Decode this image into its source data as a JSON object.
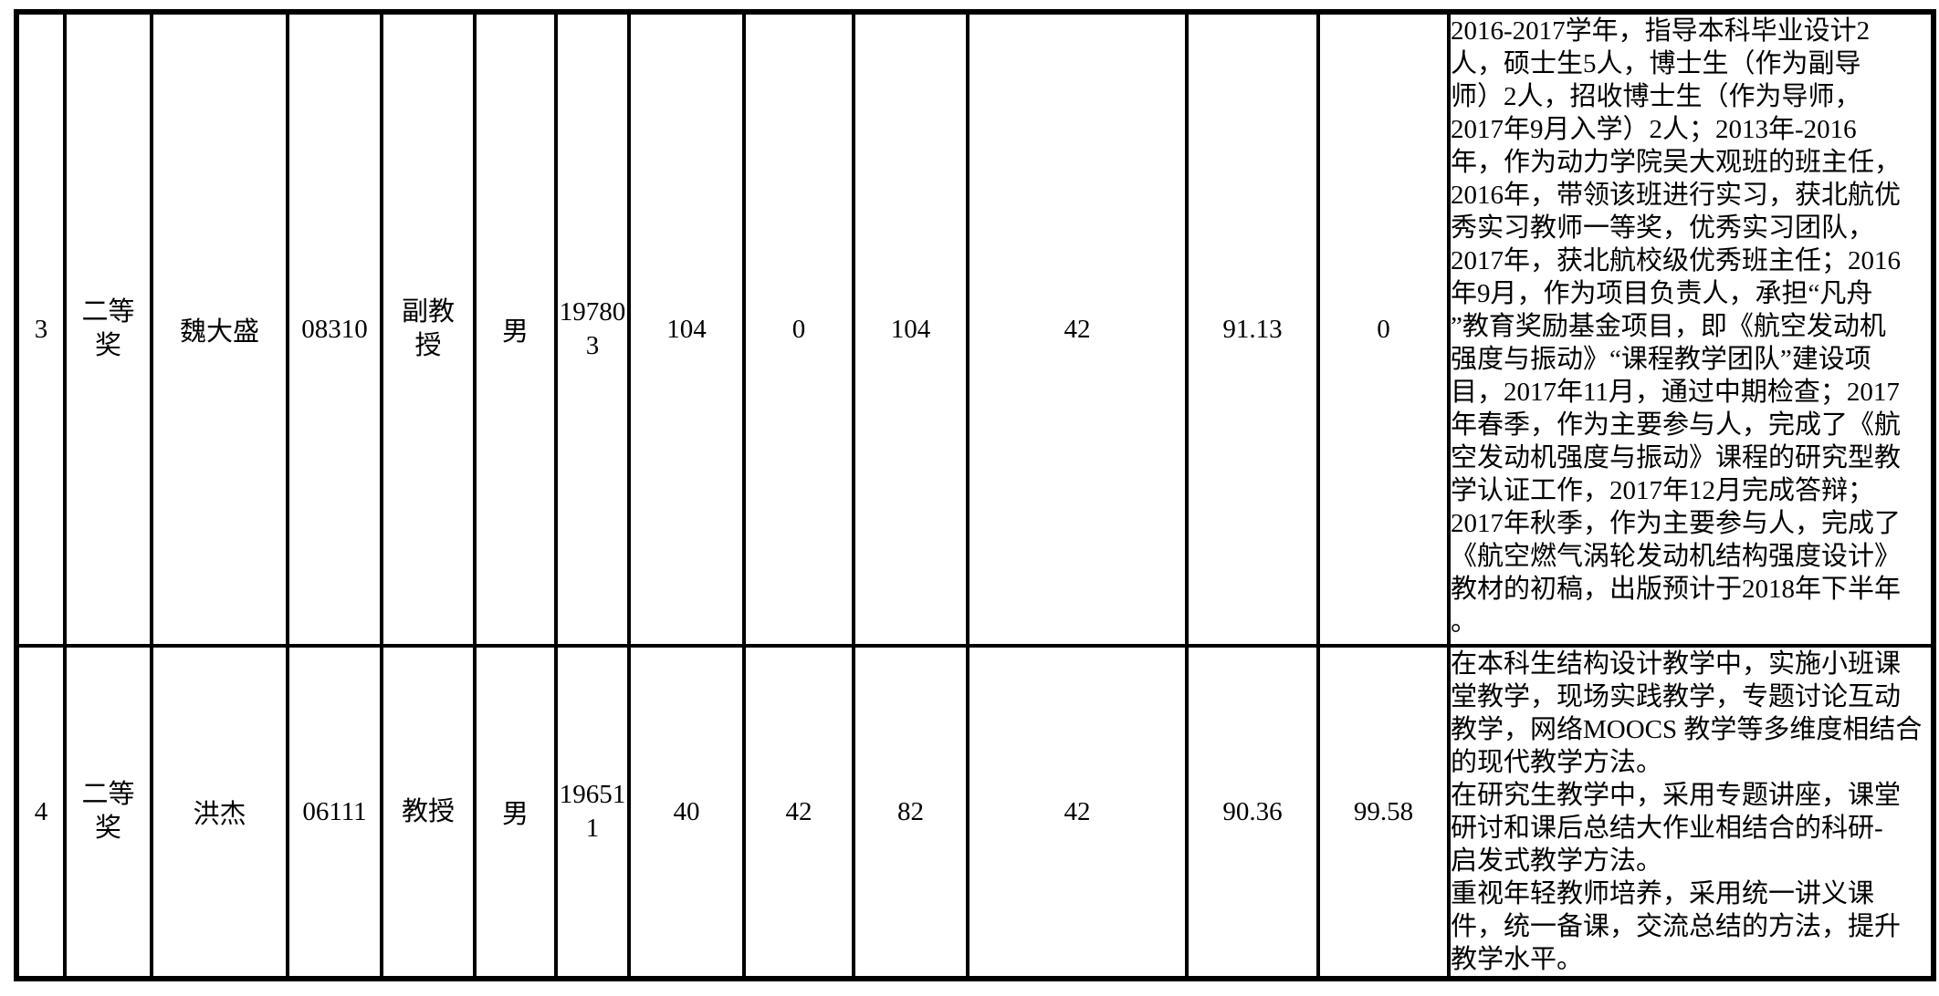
{
  "page": {
    "background_color": "#ffffff",
    "border_color": "#000000"
  },
  "table": {
    "rows": [
      {
        "index": "3",
        "award_lines": [
          "二等",
          "奖"
        ],
        "name": "魏大盛",
        "id_number": "08310",
        "title_lines": [
          "副教",
          "授"
        ],
        "gender": "男",
        "birth_lines": [
          "19780",
          "3"
        ],
        "value_1": "104",
        "value_2": "0",
        "value_3": "104",
        "value_4": "42",
        "value_5": "91.13",
        "value_6": "0",
        "description_lines": [
          "2016-2017学年，指导本科毕业设计2",
          "人，硕士生5人，博士生（作为副导",
          "师）2人，招收博士生（作为导师，",
          "2017年9月入学）2人；2013年-2016",
          "年，作为动力学院吴大观班的班主任，",
          "2016年，带领该班进行实习，获北航优",
          "秀实习教师一等奖，优秀实习团队，",
          "2017年，获北航校级优秀班主任；2016",
          "年9月，作为项目负责人，承担“凡舟",
          "”教育奖励基金项目，即《航空发动机",
          "强度与振动》“课程教学团队”建设项",
          "目，2017年11月，通过中期检查；2017",
          "年春季，作为主要参与人，完成了《航",
          "空发动机强度与振动》课程的研究型教",
          "学认证工作，2017年12月完成答辩；",
          "2017年秋季，作为主要参与人，完成了",
          "《航空燃气涡轮发动机结构强度设计》",
          "教材的初稿，出版预计于2018年下半年",
          "。"
        ]
      },
      {
        "index": "4",
        "award_lines": [
          "二等",
          "奖"
        ],
        "name": "洪杰",
        "id_number": "06111",
        "title_lines": [
          "教授"
        ],
        "gender": "男",
        "birth_lines": [
          "19651",
          "1"
        ],
        "value_1": "40",
        "value_2": "42",
        "value_3": "82",
        "value_4": "42",
        "value_5": "90.36",
        "value_6": "99.58",
        "description_lines": [
          "在本科生结构设计教学中，实施小班课",
          "堂教学，现场实践教学，专题讨论互动",
          "教学，网络MOOCS 教学等多维度相结合",
          "的现代教学方法。",
          "在研究生教学中，采用专题讲座，课堂",
          "研讨和课后总结大作业相结合的科研-",
          "启发式教学方法。",
          "重视年轻教师培养，采用统一讲义课",
          "件，统一备课，交流总结的方法，提升",
          "教学水平。"
        ]
      }
    ]
  }
}
